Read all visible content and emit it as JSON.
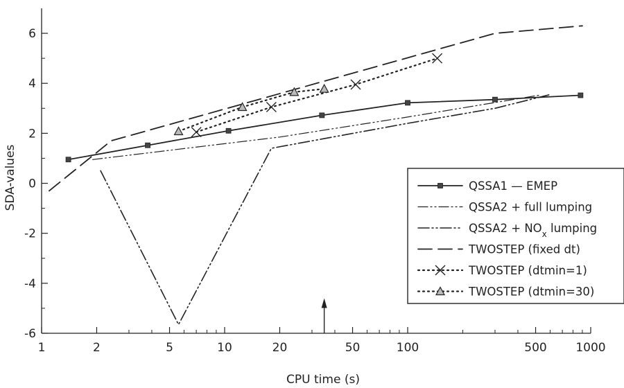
{
  "chart_data": {
    "type": "line",
    "xlabel": "CPU time (s)",
    "ylabel": "SDA-values",
    "x_scale": "log",
    "xlim": [
      1,
      1000
    ],
    "ylim": [
      -6,
      7
    ],
    "x_ticks": [
      1,
      2,
      5,
      10,
      20,
      50,
      100,
      500,
      1000
    ],
    "x_tick_labels": [
      "1",
      "2",
      "5",
      "10",
      "20",
      "50",
      "100",
      "500",
      "1000"
    ],
    "y_ticks": [
      -6,
      -4,
      -2,
      0,
      2,
      4,
      6
    ],
    "y_tick_labels": [
      "-6",
      "-4",
      "-2",
      "0",
      "2",
      "4",
      "6"
    ],
    "grid": false,
    "legend": "right",
    "annotation": {
      "type": "arrow",
      "x": 35,
      "y_from": -6,
      "y_to": -4.6
    },
    "series": [
      {
        "name": "QSSA1 — EMEP",
        "style": "solid",
        "marker": "square",
        "x": [
          1.4,
          3.8,
          10.5,
          34,
          100,
          300,
          880
        ],
        "y": [
          0.95,
          1.52,
          2.1,
          2.72,
          3.22,
          3.35,
          3.52
        ]
      },
      {
        "name": "QSSA2 + full lumping",
        "style": "dash-dot-dot-thin",
        "marker": "none",
        "x": [
          1.9,
          20,
          100,
          520
        ],
        "y": [
          0.95,
          1.85,
          2.65,
          3.52
        ]
      },
      {
        "name": "QSSA2 + NO",
        "name_subscript": "x",
        "name_suffix": " lumping",
        "style": "dash-dot-dot",
        "marker": "none",
        "x": [
          2.1,
          5.6,
          18,
          100,
          300,
          600
        ],
        "y": [
          0.5,
          -5.65,
          1.4,
          2.4,
          3.0,
          3.55
        ]
      },
      {
        "name": "TWOSTEP (fixed dt)",
        "style": "long-dash",
        "marker": "none",
        "x": [
          1.1,
          2.4,
          300,
          900
        ],
        "y": [
          -0.3,
          1.7,
          6.0,
          6.3
        ]
      },
      {
        "name": "TWOSTEP (dtmin=1)",
        "style": "dotted",
        "marker": "x",
        "x": [
          7,
          18,
          52,
          145
        ],
        "y": [
          2.05,
          3.05,
          3.95,
          5.0
        ]
      },
      {
        "name": "TWOSTEP (dtmin=30)",
        "style": "dotted",
        "marker": "triangle",
        "x": [
          5.6,
          12.5,
          24,
          35
        ],
        "y": [
          2.08,
          3.05,
          3.65,
          3.78
        ]
      }
    ]
  }
}
